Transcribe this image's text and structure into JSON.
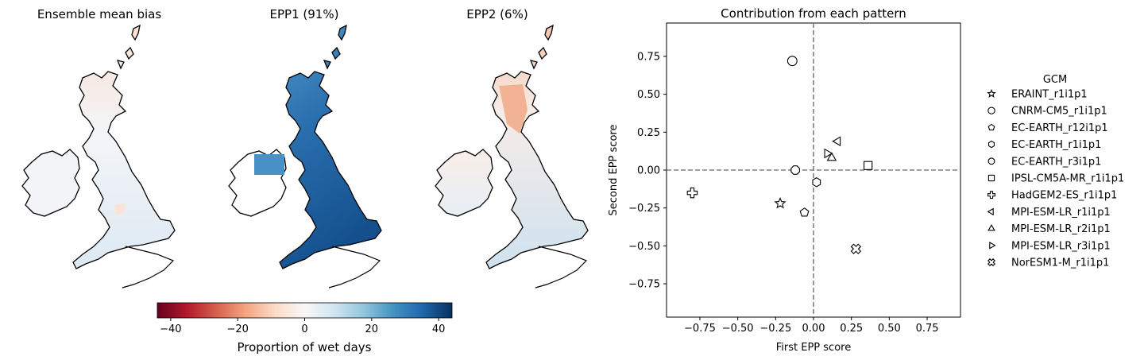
{
  "maps": [
    {
      "title": "Ensemble mean bias"
    },
    {
      "title": "EPP1 (91%)"
    },
    {
      "title": "EPP2 (6%)"
    }
  ],
  "colorbar": {
    "label": "Proportion of wet days",
    "ticks": [
      "−40",
      "−20",
      "0",
      "20",
      "40"
    ],
    "tick_values": [
      -40,
      -20,
      0,
      20,
      40
    ],
    "range": [
      -44,
      44
    ],
    "colormap": [
      "#67001f",
      "#b2182b",
      "#d6604d",
      "#f4a582",
      "#fddbc7",
      "#f7f7f7",
      "#d1e5f0",
      "#92c5de",
      "#4393c3",
      "#2166ac",
      "#053061"
    ]
  },
  "chart_data": {
    "type": "scatter",
    "title": "Contribution from each pattern",
    "xlabel": "First EPP score",
    "ylabel": "Second EPP score",
    "xlim": [
      -0.97,
      0.97
    ],
    "ylim": [
      -0.97,
      0.97
    ],
    "xticks": [
      -0.75,
      -0.5,
      -0.25,
      0.0,
      0.25,
      0.5,
      0.75
    ],
    "yticks": [
      -0.75,
      -0.5,
      -0.25,
      0.0,
      0.25,
      0.5,
      0.75
    ],
    "xtick_labels": [
      "−0.75",
      "−0.50",
      "−0.25",
      "0.00",
      "0.25",
      "0.50",
      "0.75"
    ],
    "ytick_labels": [
      "−0.75",
      "−0.50",
      "−0.25",
      "0.00",
      "0.25",
      "0.50",
      "0.75"
    ],
    "reference_lines": {
      "x": 0,
      "y": 0,
      "style": "dashed",
      "color": "#808080"
    },
    "legend": {
      "title": "GCM",
      "placement": "outside-right"
    },
    "series": [
      {
        "name": "ERAINT_r1i1p1",
        "marker": "star",
        "x": -0.22,
        "y": -0.22
      },
      {
        "name": "CNRM-CM5_r1i1p1",
        "marker": "circle",
        "x": -0.14,
        "y": 0.72
      },
      {
        "name": "EC-EARTH_r12i1p1",
        "marker": "pentagon",
        "x": -0.06,
        "y": -0.28
      },
      {
        "name": "EC-EARTH_r1i1p1",
        "marker": "hexagon",
        "x": 0.02,
        "y": -0.08
      },
      {
        "name": "EC-EARTH_r3i1p1",
        "marker": "octagon",
        "x": -0.12,
        "y": 0.0
      },
      {
        "name": "IPSL-CM5A-MR_r1i1p1",
        "marker": "square",
        "x": 0.36,
        "y": 0.03
      },
      {
        "name": "HadGEM2-ES_r1i1p1",
        "marker": "plus",
        "x": -0.8,
        "y": -0.15
      },
      {
        "name": "MPI-ESM-LR_r1i1p1",
        "marker": "triangle-left",
        "x": 0.16,
        "y": 0.19
      },
      {
        "name": "MPI-ESM-LR_r2i1p1",
        "marker": "triangle-up",
        "x": 0.12,
        "y": 0.08
      },
      {
        "name": "MPI-ESM-LR_r3i1p1",
        "marker": "triangle-right",
        "x": 0.09,
        "y": 0.11
      },
      {
        "name": "NorESM1-M_r1i1p1",
        "marker": "x-filled",
        "x": 0.28,
        "y": -0.52
      }
    ]
  }
}
